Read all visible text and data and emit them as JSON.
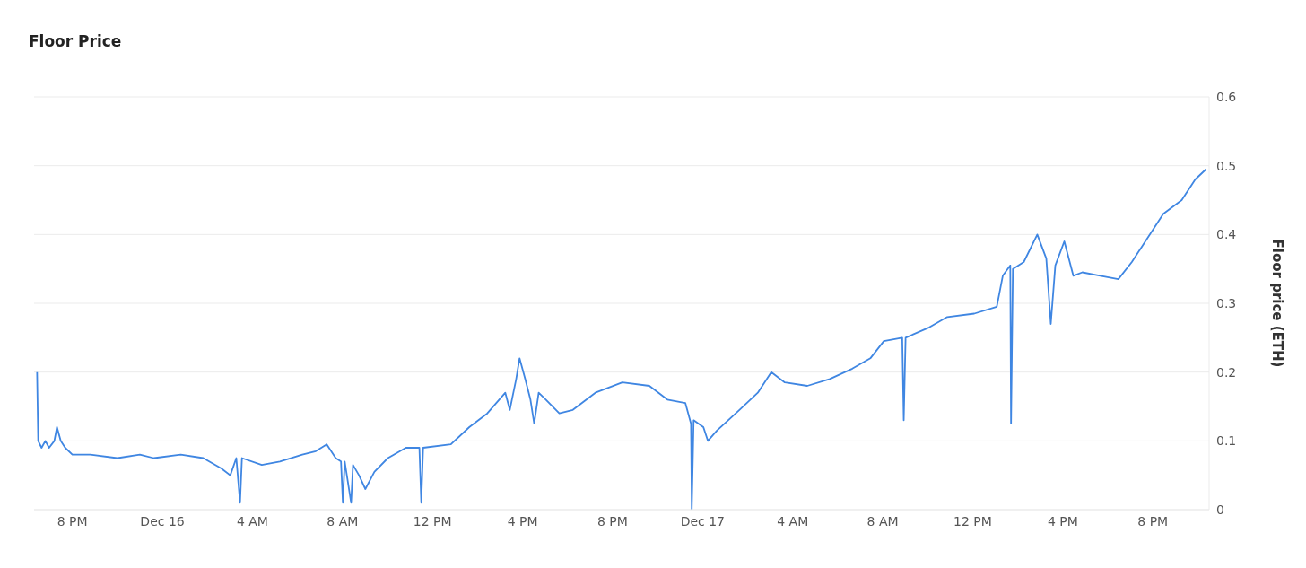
{
  "chart_data": {
    "type": "line",
    "title": "Floor Price",
    "ylabel": "Floor price (ETH)",
    "xlim": [
      "--12-15T18:18",
      "--12-17T22:30"
    ],
    "xticks": [
      {
        "value": "--12-15T20:00",
        "label": "8 PM"
      },
      {
        "value": "--12-16T00:00",
        "label": "Dec 16"
      },
      {
        "value": "--12-16T04:00",
        "label": "4 AM"
      },
      {
        "value": "--12-16T08:00",
        "label": "8 AM"
      },
      {
        "value": "--12-16T12:00",
        "label": "12 PM"
      },
      {
        "value": "--12-16T16:00",
        "label": "4 PM"
      },
      {
        "value": "--12-16T20:00",
        "label": "8 PM"
      },
      {
        "value": "--12-17T00:00",
        "label": "Dec 17"
      },
      {
        "value": "--12-17T04:00",
        "label": "4 AM"
      },
      {
        "value": "--12-17T08:00",
        "label": "8 AM"
      },
      {
        "value": "--12-17T12:00",
        "label": "12 PM"
      },
      {
        "value": "--12-17T16:00",
        "label": "4 PM"
      },
      {
        "value": "--12-17T20:00",
        "label": "8 PM"
      }
    ],
    "ylim": [
      0,
      0.6
    ],
    "yticks": [
      0,
      0.1,
      0.2,
      0.3,
      0.4,
      0.5,
      0.6
    ],
    "grid": "y",
    "legend": false,
    "marker": "none",
    "line_style": "solid",
    "series": [
      {
        "color": "#3f86e2",
        "x": [
          "--12-15T18:26",
          "--12-15T18:29",
          "--12-15T18:38",
          "--12-15T18:48",
          "--12-15T18:58",
          "--12-15T19:12",
          "--12-15T19:19",
          "--12-15T19:29",
          "--12-15T19:41",
          "--12-15T20:00",
          "--12-15T20:48",
          "--12-15T22:00",
          "--12-15T23:00",
          "--12-15T23:37",
          "--12-16T00:49",
          "--12-16T01:49",
          "--12-16T02:37",
          "--12-16T03:01",
          "--12-16T03:17",
          "--12-16T03:27",
          "--12-16T03:32",
          "--12-16T04:25",
          "--12-16T05:13",
          "--12-16T06:13",
          "--12-16T06:49",
          "--12-16T07:18",
          "--12-16T07:42",
          "--12-16T07:56",
          "--12-16T08:01",
          "--12-16T08:06",
          "--12-16T08:23",
          "--12-16T08:28",
          "--12-16T08:44",
          "--12-16T09:01",
          "--12-16T09:25",
          "--12-16T10:01",
          "--12-16T10:49",
          "--12-16T11:25",
          "--12-16T11:30",
          "--12-16T11:35",
          "--12-16T12:49",
          "--12-16T13:38",
          "--12-16T14:26",
          "--12-16T15:14",
          "--12-16T15:26",
          "--12-16T15:43",
          "--12-16T15:52",
          "--12-16T16:07",
          "--12-16T16:21",
          "--12-16T16:31",
          "--12-16T16:43",
          "--12-16T17:02",
          "--12-16T17:38",
          "--12-16T18:14",
          "--12-16T19:14",
          "--12-16T20:26",
          "--12-16T21:38",
          "--12-16T22:26",
          "--12-16T23:14",
          "--12-16T23:29",
          "--12-16T23:31",
          "--12-16T23:36",
          "--12-17T00:02",
          "--12-17T00:14",
          "--12-17T00:38",
          "--12-17T01:38",
          "--12-17T02:27",
          "--12-17T03:03",
          "--12-17T03:39",
          "--12-17T04:39",
          "--12-17T05:39",
          "--12-17T06:39",
          "--12-17T07:27",
          "--12-17T08:03",
          "--12-17T08:52",
          "--12-17T08:56",
          "--12-17T09:01",
          "--12-17T10:04",
          "--12-17T10:52",
          "--12-17T12:04",
          "--12-17T13:04",
          "--12-17T13:20",
          "--12-17T13:40",
          "--12-17T13:42",
          "--12-17T13:47",
          "--12-17T14:16",
          "--12-17T14:52",
          "--12-17T15:16",
          "--12-17T15:28",
          "--12-17T15:40",
          "--12-17T16:04",
          "--12-17T16:28",
          "--12-17T16:52",
          "--12-17T17:40",
          "--12-17T18:28",
          "--12-17T19:04",
          "--12-17T19:40",
          "--12-17T20:28",
          "--12-17T21:17",
          "--12-17T21:53",
          "--12-17T22:22"
        ],
        "values": [
          0.2,
          0.1,
          0.09,
          0.1,
          0.09,
          0.1,
          0.12,
          0.1,
          0.09,
          0.08,
          0.08,
          0.075,
          0.08,
          0.075,
          0.08,
          0.075,
          0.06,
          0.05,
          0.075,
          0.01,
          0.075,
          0.065,
          0.07,
          0.08,
          0.085,
          0.095,
          0.075,
          0.07,
          0.01,
          0.07,
          0.01,
          0.065,
          0.05,
          0.03,
          0.055,
          0.075,
          0.09,
          0.09,
          0.01,
          0.09,
          0.095,
          0.12,
          0.14,
          0.17,
          0.145,
          0.19,
          0.22,
          0.19,
          0.16,
          0.125,
          0.17,
          0.16,
          0.14,
          0.145,
          0.17,
          0.185,
          0.18,
          0.16,
          0.155,
          0.125,
          0.0,
          0.13,
          0.12,
          0.1,
          0.115,
          0.145,
          0.17,
          0.2,
          0.185,
          0.18,
          0.19,
          0.205,
          0.22,
          0.245,
          0.25,
          0.13,
          0.25,
          0.265,
          0.28,
          0.285,
          0.295,
          0.34,
          0.355,
          0.125,
          0.35,
          0.36,
          0.4,
          0.365,
          0.27,
          0.355,
          0.39,
          0.34,
          0.345,
          0.34,
          0.335,
          0.36,
          0.39,
          0.43,
          0.45,
          0.48,
          0.495
        ]
      }
    ]
  }
}
